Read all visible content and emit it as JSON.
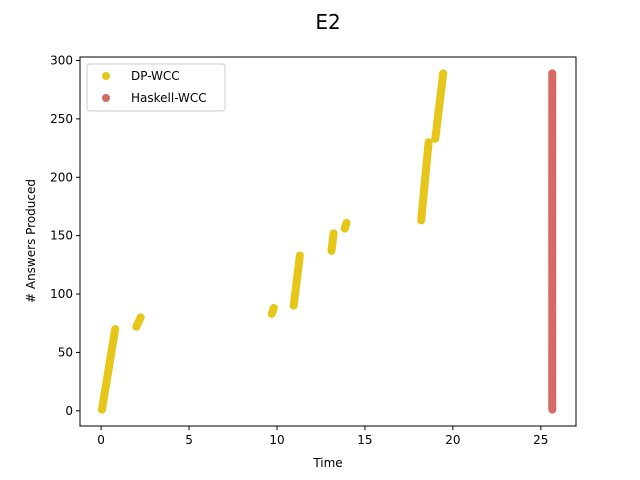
{
  "chart_data": {
    "type": "scatter",
    "title": "E2",
    "xlabel": "Time",
    "ylabel": "# Answers Produced",
    "xlim": [
      -1.2,
      27.0
    ],
    "ylim": [
      -13,
      303
    ],
    "xticks": [
      0,
      5,
      10,
      15,
      20,
      25
    ],
    "yticks": [
      0,
      50,
      100,
      150,
      200,
      250,
      300
    ],
    "legend_position": "top-left",
    "grid": false,
    "series": [
      {
        "name": "DP-WCC",
        "color": "#e6c619",
        "segments": [
          {
            "x0": 0.05,
            "y0": 1,
            "x1": 0.8,
            "y1": 70
          },
          {
            "x0": 2.0,
            "y0": 72,
            "x1": 2.25,
            "y1": 80
          },
          {
            "x0": 9.7,
            "y0": 83,
            "x1": 9.82,
            "y1": 88
          },
          {
            "x0": 10.95,
            "y0": 90,
            "x1": 11.3,
            "y1": 133
          },
          {
            "x0": 13.1,
            "y0": 137,
            "x1": 13.22,
            "y1": 152
          },
          {
            "x0": 13.85,
            "y0": 156,
            "x1": 13.95,
            "y1": 161
          },
          {
            "x0": 18.2,
            "y0": 163,
            "x1": 18.62,
            "y1": 230
          },
          {
            "x0": 19.0,
            "y0": 233,
            "x1": 19.45,
            "y1": 289
          }
        ]
      },
      {
        "name": "Haskell-WCC",
        "color": "#d46a66",
        "segments": [
          {
            "x0": 25.65,
            "y0": 1,
            "x1": 25.65,
            "y1": 289
          }
        ]
      }
    ]
  }
}
